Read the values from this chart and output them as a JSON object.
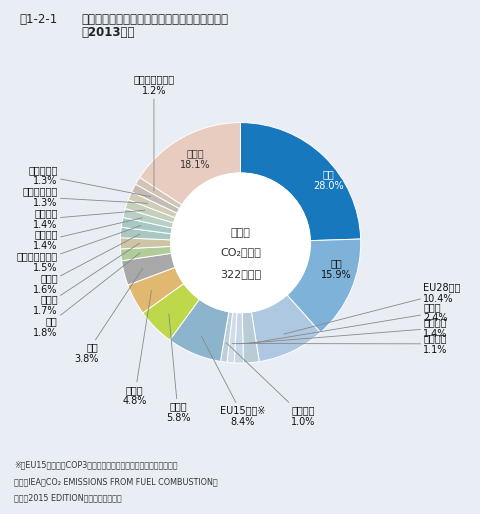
{
  "title_fig": "図1-2-1",
  "title_main": "世界のエネルギー起源二酸化炭素の国別排出量",
  "title_sub": "（2013年）",
  "center_line1": "世界の",
  "center_line2": "CO₂排出量",
  "center_line3": "322億トン",
  "footnote1": "※：EU15か国は、COP3（京都会議）開催時点での加盟国数である",
  "footnote2": "資料：IEA「CO₂ EMISSIONS FROM FUEL COMBUSTION」",
  "footnote3": "　　　2015 EDITIONを元に環境省作成",
  "bg_color": "#e8eef4",
  "slices": [
    {
      "label": "中国",
      "pct": 28.0,
      "color": "#1878be"
    },
    {
      "label": "米国",
      "pct": 15.9,
      "color": "#7fb2d8"
    },
    {
      "label": "EU28か国",
      "pct": 10.4,
      "color": "#adc8e0"
    },
    {
      "label": "ドイツ",
      "pct": 2.4,
      "color": "#b8ccd8"
    },
    {
      "label": "イギリス",
      "pct": 1.4,
      "color": "#c8d8e8"
    },
    {
      "label": "イタリア",
      "pct": 1.1,
      "color": "#d0dce8"
    },
    {
      "label": "フランス",
      "pct": 1.0,
      "color": "#bcd0dc"
    },
    {
      "label": "EU15か国※",
      "pct": 8.4,
      "color": "#8cb4cc"
    },
    {
      "label": "インド",
      "pct": 5.8,
      "color": "#bed84c"
    },
    {
      "label": "ロシア",
      "pct": 4.8,
      "color": "#e0b870"
    },
    {
      "label": "日本",
      "pct": 3.8,
      "color": "#a8a8a8"
    },
    {
      "label": "韓国",
      "pct": 1.8,
      "color": "#b0cc98"
    },
    {
      "label": "カナダ",
      "pct": 1.7,
      "color": "#ccc4a4"
    },
    {
      "label": "イラン",
      "pct": 1.6,
      "color": "#a8c8c0"
    },
    {
      "label": "サウジアラビア",
      "pct": 1.5,
      "color": "#a8c8c8"
    },
    {
      "label": "ブラジル",
      "pct": 1.4,
      "color": "#b8d0c4"
    },
    {
      "label": "メキシコ",
      "pct": 1.4,
      "color": "#c4d0bc"
    },
    {
      "label": "インドネシア",
      "pct": 1.3,
      "color": "#d0ccb8"
    },
    {
      "label": "南アフリカ",
      "pct": 1.3,
      "color": "#c4bcb4"
    },
    {
      "label": "オーストラリア",
      "pct": 1.2,
      "color": "#d4c4b8"
    },
    {
      "label": "その他",
      "pct": 18.1,
      "color": "#e8ccc0"
    }
  ]
}
